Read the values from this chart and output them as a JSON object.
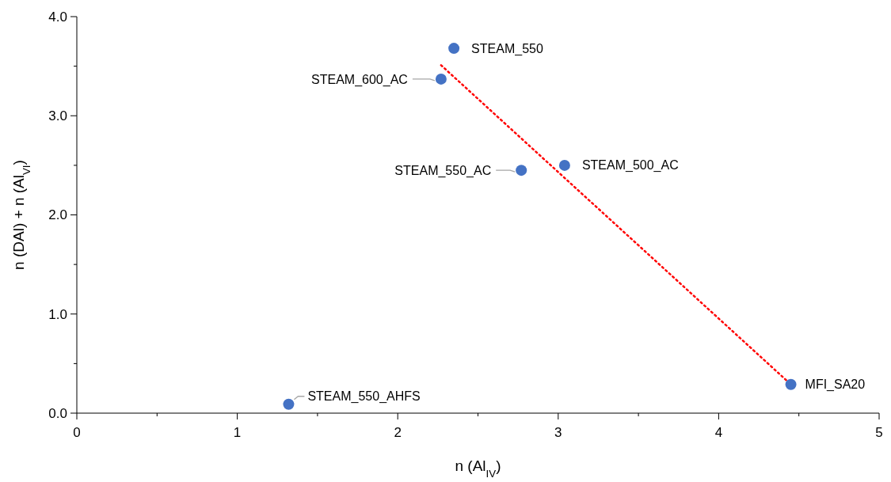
{
  "chart_data": {
    "type": "scatter",
    "xlabel": "n (Al$_{IV}$)",
    "ylabel": "n (DAl) + n (Al$_{VI}$)",
    "xlim": [
      0,
      5
    ],
    "xticks": [
      0,
      1,
      2,
      3,
      4,
      5
    ],
    "ylim": [
      0,
      4
    ],
    "yticks": [
      {
        "value": 0,
        "label": "0.0"
      },
      {
        "value": 1,
        "label": "1.0"
      },
      {
        "value": 2,
        "label": "2.0"
      },
      {
        "value": 3,
        "label": "3.0"
      },
      {
        "value": 4,
        "label": "4.0"
      }
    ],
    "grid": false,
    "marker": "circle",
    "series": [
      {
        "color": "#4472c4",
        "x": [
          2.35,
          2.27,
          2.77,
          3.04,
          4.45,
          1.32
        ],
        "values": [
          3.68,
          3.37,
          2.45,
          2.5,
          0.29,
          0.09
        ]
      },
      {
        "type": "line",
        "color": "#ff0000",
        "line_style": "dotted",
        "marker": "none",
        "x": [
          2.27,
          4.45
        ],
        "values": [
          3.51,
          0.29
        ]
      }
    ],
    "annotations": [
      {
        "text": "STEAM_550",
        "x": 2.35,
        "y": 3.68
      },
      {
        "text": "STEAM_600_AC",
        "x": 2.27,
        "y": 3.37
      },
      {
        "text": "STEAM_550_AC",
        "x": 2.77,
        "y": 2.45
      },
      {
        "text": "STEAM_500_AC",
        "x": 3.04,
        "y": 2.5
      },
      {
        "text": "MFI_SA20",
        "x": 4.45,
        "y": 0.29
      },
      {
        "text": "STEAM_550_AHFS",
        "x": 1.32,
        "y": 0.09
      }
    ]
  }
}
